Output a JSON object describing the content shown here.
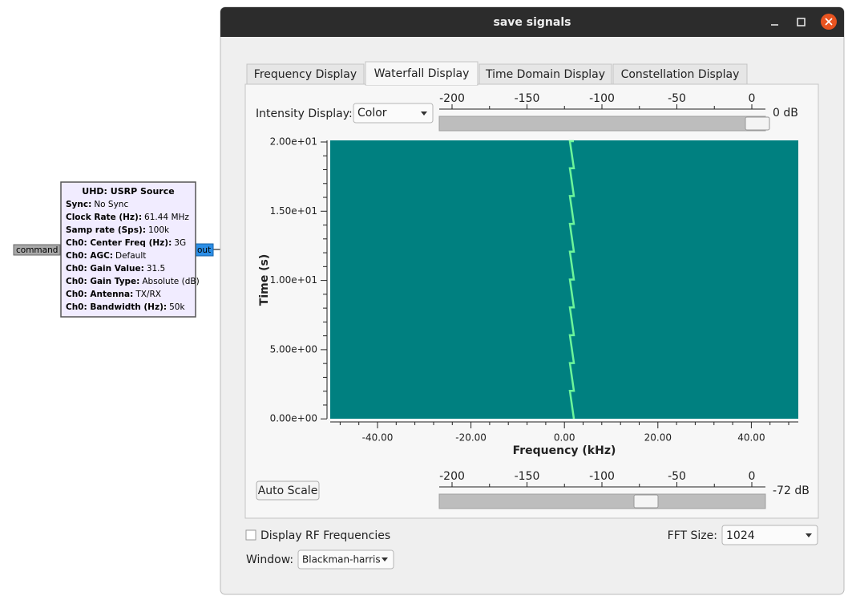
{
  "flowgraph_block": {
    "title": "UHD: USRP Source",
    "params": [
      [
        "Sync:",
        "No Sync"
      ],
      [
        "Clock Rate (Hz):",
        "61.44 MHz"
      ],
      [
        "Samp rate (Sps):",
        "100k"
      ],
      [
        "Ch0: Center Freq (Hz):",
        "3G"
      ],
      [
        "Ch0: AGC:",
        "Default"
      ],
      [
        "Ch0: Gain Value:",
        "31.5"
      ],
      [
        "Ch0: Gain Type:",
        "Absolute (dB)"
      ],
      [
        "Ch0: Antenna:",
        "TX/RX"
      ],
      [
        "Ch0: Bandwidth (Hz):",
        "50k"
      ]
    ],
    "input_port": "command",
    "output_port": "out"
  },
  "window": {
    "title": "save signals",
    "tabs": [
      "Frequency Display",
      "Waterfall Display",
      "Time Domain Display",
      "Constellation Display"
    ],
    "intensity_label": "Intensity Display:",
    "intensity_mode": "Color",
    "max_intensity": {
      "scale": [
        "-200",
        "-150",
        "-100",
        "-50",
        "0"
      ],
      "label": "0 dB"
    },
    "min_intensity": {
      "scale": [
        "-200",
        "-150",
        "-100",
        "-50",
        "0"
      ],
      "label": "-72 dB"
    },
    "plot": {
      "y_title": "Time (s)",
      "y_ticks": [
        "2.00e+01",
        "1.50e+01",
        "1.00e+01",
        "5.00e+00",
        "0.00e+00"
      ],
      "x_title": "Frequency (kHz)",
      "x_ticks": [
        "-40.00",
        "-20.00",
        "0.00",
        "20.00",
        "40.00"
      ]
    },
    "auto_scale": "Auto Scale",
    "rf_checkbox": "Display RF Frequencies",
    "fft_label": "FFT Size:",
    "fft_size": "1024",
    "window_label": "Window:",
    "window_function": "Blackman-harris"
  }
}
